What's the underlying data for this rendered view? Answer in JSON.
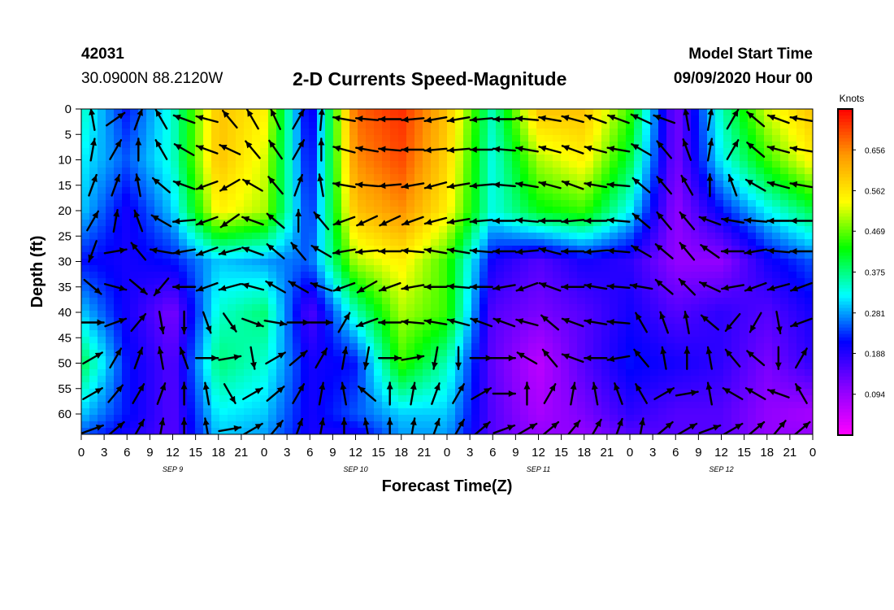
{
  "header": {
    "station_id": "42031",
    "coordinates": "30.0900N 88.2120W",
    "start_label": "Model Start Time",
    "start_value": "09/09/2020 Hour 00"
  },
  "chart_data": {
    "type": "heatmap",
    "title": "2-D Currents Speed-Magnitude",
    "xlabel": "Forecast Time(Z)",
    "ylabel": "Depth (ft)",
    "x_ticks": [
      "0",
      "3",
      "6",
      "9",
      "12",
      "15",
      "18",
      "21",
      "0",
      "3",
      "6",
      "9",
      "12",
      "15",
      "18",
      "21",
      "0",
      "3",
      "6",
      "9",
      "12",
      "15",
      "18",
      "21",
      "0",
      "3",
      "6",
      "9",
      "12",
      "15",
      "18",
      "21",
      "0"
    ],
    "x_range_hours": [
      0,
      96
    ],
    "day_labels": [
      {
        "label": "SEP 9",
        "hour": 12
      },
      {
        "label": "SEP 10",
        "hour": 36
      },
      {
        "label": "SEP 11",
        "hour": 60
      },
      {
        "label": "SEP 12",
        "hour": 84
      }
    ],
    "y_ticks": [
      0,
      5,
      10,
      15,
      20,
      25,
      30,
      35,
      40,
      45,
      50,
      55,
      60
    ],
    "ylim": [
      0,
      64
    ],
    "y_inverted": true,
    "colorbar": {
      "label": "Knots",
      "ticks": [
        "0.656",
        "0.562",
        "0.469",
        "0.375",
        "0.281",
        "0.188",
        "0.094"
      ],
      "range": [
        0,
        0.75
      ],
      "palette": [
        "#ff00ff",
        "#8a00ff",
        "#0000ff",
        "#00ffff",
        "#00ff00",
        "#ffff00",
        "#ff9900",
        "#ff0000"
      ]
    },
    "speed_field": {
      "depths_ft": [
        0,
        10,
        20,
        30,
        40,
        50,
        60,
        64
      ],
      "hours": [
        0,
        6,
        12,
        18,
        24,
        30,
        36,
        42,
        48,
        54,
        60,
        66,
        72,
        78,
        84,
        90,
        96
      ],
      "values": [
        [
          0.35,
          0.22,
          0.34,
          0.6,
          0.55,
          0.18,
          0.68,
          0.72,
          0.6,
          0.35,
          0.6,
          0.6,
          0.45,
          0.12,
          0.35,
          0.52,
          0.6
        ],
        [
          0.32,
          0.25,
          0.34,
          0.6,
          0.52,
          0.2,
          0.65,
          0.7,
          0.58,
          0.33,
          0.5,
          0.55,
          0.4,
          0.12,
          0.32,
          0.45,
          0.55
        ],
        [
          0.3,
          0.2,
          0.3,
          0.55,
          0.5,
          0.22,
          0.6,
          0.65,
          0.55,
          0.33,
          0.42,
          0.45,
          0.32,
          0.1,
          0.22,
          0.32,
          0.4
        ],
        [
          0.22,
          0.2,
          0.22,
          0.3,
          0.28,
          0.25,
          0.5,
          0.55,
          0.45,
          0.2,
          0.15,
          0.2,
          0.18,
          0.1,
          0.1,
          0.2,
          0.25
        ],
        [
          0.3,
          0.2,
          0.12,
          0.34,
          0.38,
          0.15,
          0.35,
          0.5,
          0.45,
          0.15,
          0.12,
          0.15,
          0.2,
          0.15,
          0.18,
          0.15,
          0.2
        ],
        [
          0.4,
          0.22,
          0.15,
          0.38,
          0.34,
          0.2,
          0.22,
          0.45,
          0.35,
          0.14,
          0.06,
          0.15,
          0.22,
          0.2,
          0.18,
          0.12,
          0.18
        ],
        [
          0.3,
          0.22,
          0.15,
          0.32,
          0.3,
          0.2,
          0.25,
          0.3,
          0.3,
          0.15,
          0.08,
          0.12,
          0.18,
          0.15,
          0.15,
          0.1,
          0.08
        ],
        [
          0.25,
          0.2,
          0.15,
          0.3,
          0.28,
          0.2,
          0.2,
          0.28,
          0.28,
          0.15,
          0.1,
          0.1,
          0.15,
          0.15,
          0.15,
          0.1,
          0.1
        ]
      ]
    },
    "vector_field": {
      "depths_ft": [
        2,
        8,
        15,
        22,
        28,
        35,
        42,
        49,
        56,
        63
      ],
      "hours": [
        1.5,
        4.5,
        7.5,
        10.5,
        13.5,
        16.5,
        19.5,
        22.5,
        25.5,
        28.5,
        31.5,
        34.5,
        37.5,
        40.5,
        43.5,
        46.5,
        49.5,
        52.5,
        55.5,
        58.5,
        61.5,
        64.5,
        67.5,
        70.5,
        73.5,
        76.5,
        79.5,
        82.5,
        85.5,
        88.5,
        91.5,
        94.5
      ],
      "angles_deg": [
        [
          100,
          35,
          70,
          120,
          160,
          165,
          130,
          120,
          115,
          60,
          85,
          170,
          175,
          180,
          185,
          190,
          190,
          185,
          180,
          175,
          170,
          165,
          160,
          160,
          155,
          160,
          100,
          80,
          60,
          140,
          160,
          170
        ],
        [
          80,
          60,
          90,
          120,
          150,
          160,
          155,
          130,
          125,
          60,
          90,
          165,
          170,
          175,
          180,
          185,
          185,
          180,
          175,
          170,
          165,
          160,
          165,
          170,
          150,
          130,
          110,
          80,
          60,
          140,
          165,
          170
        ],
        [
          70,
          70,
          100,
          140,
          160,
          200,
          210,
          150,
          130,
          70,
          100,
          170,
          175,
          185,
          190,
          195,
          190,
          185,
          175,
          170,
          165,
          160,
          170,
          175,
          140,
          130,
          120,
          90,
          110,
          150,
          165,
          170
        ],
        [
          60,
          80,
          110,
          150,
          185,
          200,
          215,
          160,
          140,
          90,
          130,
          200,
          205,
          205,
          200,
          195,
          190,
          185,
          180,
          175,
          180,
          185,
          180,
          175,
          140,
          130,
          130,
          160,
          170,
          175,
          180,
          180
        ],
        [
          250,
          10,
          130,
          170,
          190,
          200,
          195,
          160,
          140,
          130,
          150,
          190,
          185,
          180,
          175,
          170,
          170,
          175,
          180,
          185,
          165,
          180,
          185,
          175,
          150,
          140,
          130,
          145,
          180,
          190,
          175,
          180
        ],
        [
          320,
          345,
          320,
          230,
          180,
          200,
          195,
          165,
          150,
          150,
          160,
          200,
          210,
          200,
          190,
          180,
          175,
          180,
          190,
          200,
          160,
          180,
          170,
          175,
          170,
          140,
          135,
          155,
          190,
          200,
          195,
          200
        ],
        [
          0,
          20,
          50,
          280,
          270,
          290,
          305,
          340,
          350,
          0,
          0,
          60,
          200,
          180,
          175,
          170,
          165,
          160,
          160,
          165,
          140,
          160,
          170,
          175,
          120,
          110,
          100,
          140,
          230,
          240,
          280,
          200
        ],
        [
          30,
          60,
          70,
          100,
          110,
          0,
          10,
          280,
          30,
          40,
          60,
          80,
          260,
          0,
          10,
          260,
          270,
          0,
          0,
          150,
          130,
          160,
          180,
          190,
          130,
          100,
          90,
          100,
          130,
          140,
          270,
          60
        ],
        [
          30,
          50,
          60,
          70,
          90,
          100,
          300,
          30,
          40,
          60,
          80,
          100,
          140,
          90,
          80,
          70,
          60,
          30,
          0,
          90,
          60,
          80,
          100,
          110,
          120,
          30,
          10,
          100,
          150,
          150,
          160,
          120
        ],
        [
          20,
          40,
          60,
          80,
          90,
          100,
          10,
          30,
          50,
          70,
          80,
          90,
          100,
          90,
          80,
          70,
          60,
          40,
          20,
          30,
          40,
          50,
          60,
          70,
          80,
          40,
          30,
          20,
          30,
          40,
          50,
          40
        ]
      ]
    }
  }
}
